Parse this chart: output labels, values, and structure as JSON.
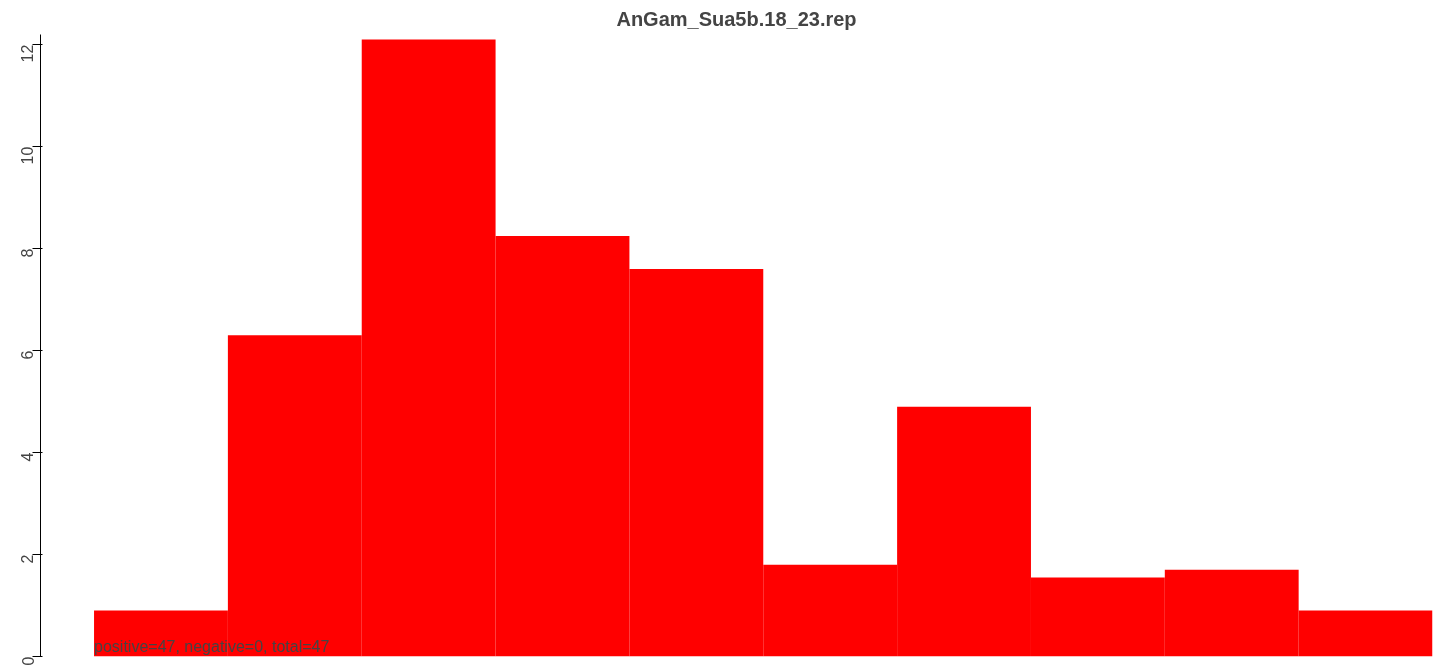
{
  "chart_data": {
    "type": "bar",
    "title": "AnGam_Sua5b.18_23.rep",
    "categories": [
      null,
      null,
      null,
      null,
      null,
      null,
      null,
      null,
      null,
      null
    ],
    "series": [
      {
        "color": "#ff0000",
        "values": [
          0.9,
          6.3,
          12.1,
          8.25,
          7.6,
          1.8,
          4.9,
          1.55,
          1.7,
          0.9
        ]
      }
    ],
    "ylim": [
      0,
      12.2
    ],
    "yticks": [
      0,
      2,
      4,
      6,
      8,
      10,
      12
    ],
    "tick_labels": "y",
    "annotations": [
      "positive=47, negative=0, total=47"
    ]
  }
}
